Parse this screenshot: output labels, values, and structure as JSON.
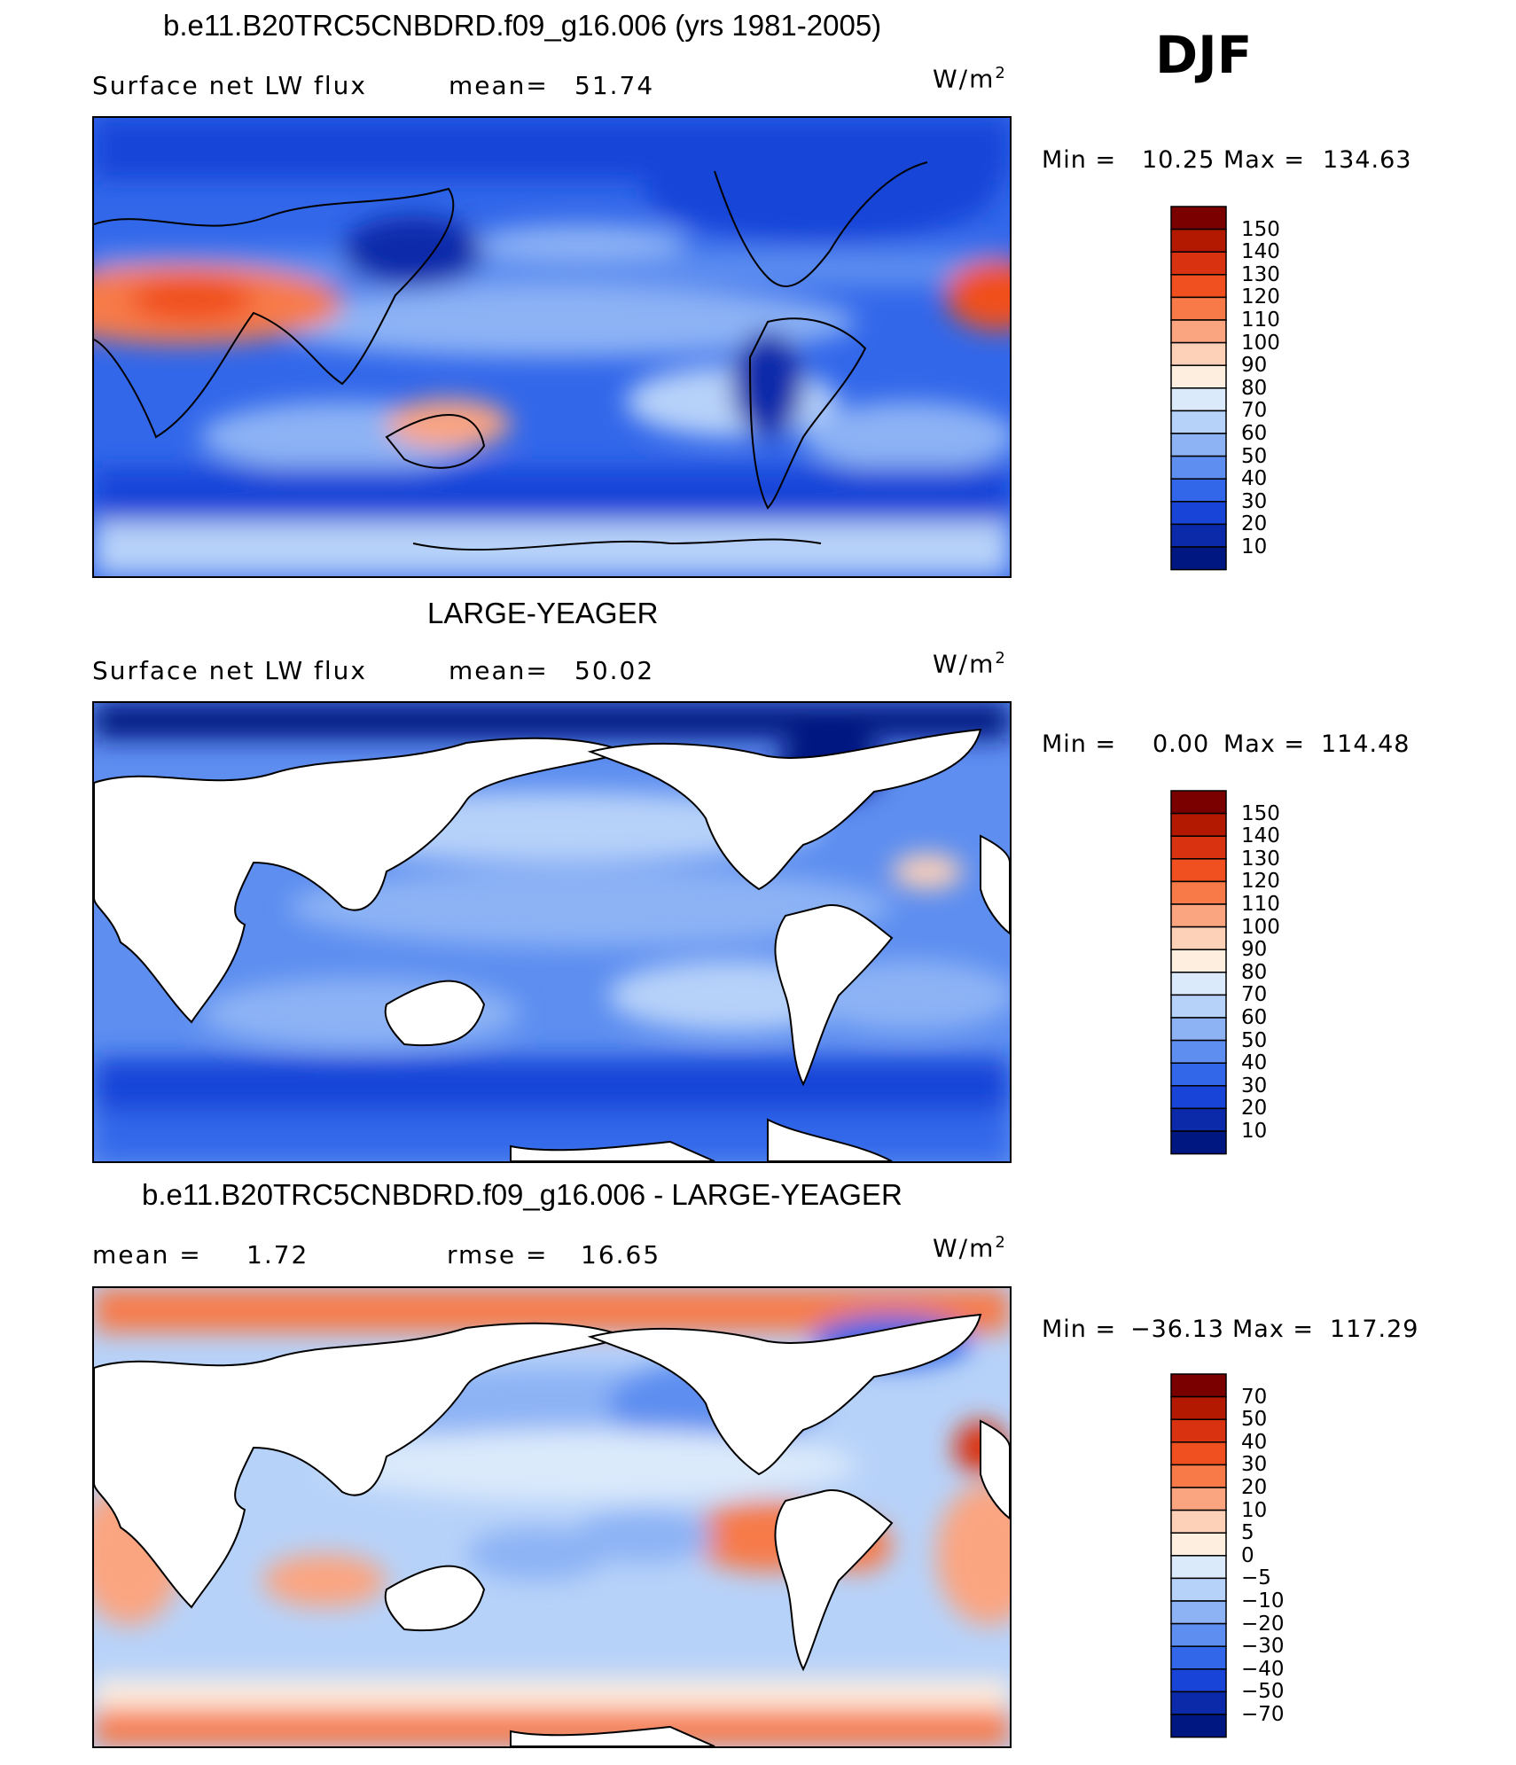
{
  "season": "DJF",
  "panels": [
    {
      "title": "b.e11.B20TRC5CNBDRD.f09_g16.006 (yrs 1981-2005)",
      "left_label": "Surface net LW flux",
      "stat1_label": "mean=",
      "stat1_value": "51.74",
      "stat2_label": "",
      "stat2_value": "",
      "units": "W/m",
      "units_sup": "2",
      "min_label": "Min =",
      "min_value": "10.25",
      "max_label": "Max =",
      "max_value": "134.63",
      "land_masked": false,
      "colorbar": {
        "labels": [
          "150",
          "140",
          "130",
          "120",
          "110",
          "100",
          "90",
          "80",
          "70",
          "60",
          "50",
          "40",
          "30",
          "20",
          "10"
        ],
        "colors": [
          "#7a0000",
          "#b31800",
          "#d93210",
          "#f0501f",
          "#f77a48",
          "#fba480",
          "#fdd0b8",
          "#fdeee0",
          "#dbeafb",
          "#b7d2f9",
          "#8db3f5",
          "#5d8ef0",
          "#3267ea",
          "#1844d8",
          "#0a2aaa",
          "#001680"
        ]
      }
    },
    {
      "title": "LARGE-YEAGER",
      "left_label": "Surface net LW flux",
      "stat1_label": "mean=",
      "stat1_value": "50.02",
      "stat2_label": "",
      "stat2_value": "",
      "units": "W/m",
      "units_sup": "2",
      "min_label": "Min =",
      "min_value": "0.00",
      "max_label": "Max =",
      "max_value": "114.48",
      "land_masked": true,
      "colorbar": {
        "labels": [
          "150",
          "140",
          "130",
          "120",
          "110",
          "100",
          "90",
          "80",
          "70",
          "60",
          "50",
          "40",
          "30",
          "20",
          "10"
        ],
        "colors": [
          "#7a0000",
          "#b31800",
          "#d93210",
          "#f0501f",
          "#f77a48",
          "#fba480",
          "#fdd0b8",
          "#fdeee0",
          "#dbeafb",
          "#b7d2f9",
          "#8db3f5",
          "#5d8ef0",
          "#3267ea",
          "#1844d8",
          "#0a2aaa",
          "#001680"
        ]
      }
    },
    {
      "title": "b.e11.B20TRC5CNBDRD.f09_g16.006 - LARGE-YEAGER",
      "left_label": "mean =",
      "stat1_label": "1.72",
      "stat1_value": "",
      "stat2_label": "rmse =",
      "stat2_value": "16.65",
      "units": "W/m",
      "units_sup": "2",
      "min_label": "Min =",
      "min_value": "−36.13",
      "max_label": "Max =",
      "max_value": "117.29",
      "land_masked": true,
      "colorbar": {
        "labels": [
          "70",
          "50",
          "40",
          "30",
          "20",
          "10",
          "5",
          "0",
          "−5",
          "−10",
          "−20",
          "−30",
          "−40",
          "−50",
          "−70"
        ],
        "colors": [
          "#7a0000",
          "#b31800",
          "#d93210",
          "#f0501f",
          "#f77a48",
          "#fba480",
          "#fdd0b8",
          "#fdeee0",
          "#dbeafb",
          "#b7d2f9",
          "#8db3f5",
          "#5d8ef0",
          "#3267ea",
          "#1844d8",
          "#0a2aaa",
          "#001680"
        ]
      }
    }
  ]
}
